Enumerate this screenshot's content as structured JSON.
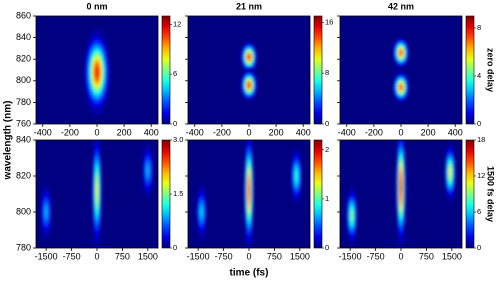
{
  "chart_data": [
    {
      "type": "heatmap",
      "title": "0 nm",
      "ylabel": "wavelength (nm)",
      "xlim": [
        -450,
        450
      ],
      "xticks": [
        -400,
        -200,
        0,
        200,
        400
      ],
      "ylim": [
        760,
        860
      ],
      "yticks": [
        760,
        780,
        800,
        820,
        840,
        860
      ],
      "clim": [
        0,
        13
      ],
      "cticks": [
        0,
        6,
        12
      ],
      "spots": [
        {
          "x": 0,
          "y": 808,
          "value": 12,
          "sx": 40,
          "sy": 16
        }
      ]
    },
    {
      "type": "heatmap",
      "title": "21 nm",
      "xlim": [
        -450,
        450
      ],
      "xticks": [
        -400,
        -200,
        0,
        200,
        400
      ],
      "ylim": [
        760,
        860
      ],
      "yticks": [
        760,
        780,
        800,
        820,
        840,
        860
      ],
      "clim": [
        0,
        17
      ],
      "cticks": [
        0,
        8,
        16
      ],
      "spots": [
        {
          "x": 0,
          "y": 822,
          "value": 16,
          "sx": 25,
          "sy": 6
        },
        {
          "x": 0,
          "y": 796,
          "value": 16,
          "sx": 25,
          "sy": 6
        }
      ]
    },
    {
      "type": "heatmap",
      "title": "42 nm",
      "row_label": "zero delay",
      "xlim": [
        -450,
        450
      ],
      "xticks": [
        -400,
        -200,
        0,
        200,
        400
      ],
      "ylim": [
        760,
        860
      ],
      "yticks": [
        760,
        780,
        800,
        820,
        840,
        860
      ],
      "clim": [
        0,
        9
      ],
      "cticks": [
        0,
        4,
        8
      ],
      "spots": [
        {
          "x": 0,
          "y": 826,
          "value": 8,
          "sx": 25,
          "sy": 6
        },
        {
          "x": 0,
          "y": 794,
          "value": 8,
          "sx": 25,
          "sy": 6
        }
      ]
    },
    {
      "type": "heatmap",
      "xlim": [
        -1800,
        1800
      ],
      "xticks": [
        -1500,
        -750,
        0,
        750,
        1500
      ],
      "ylim": [
        780,
        840
      ],
      "yticks": [
        780,
        800,
        820,
        840
      ],
      "clim": [
        0,
        3
      ],
      "cticks": [
        0,
        1.5,
        {
          "value": 3,
          "label": "3.0"
        }
      ],
      "spots": [
        {
          "x": -1500,
          "y": 800,
          "value": 1,
          "sx": 70,
          "sy": 7
        },
        {
          "x": 0,
          "y": 812,
          "value": 2,
          "sx": 60,
          "sy": 14
        },
        {
          "x": 1500,
          "y": 823,
          "value": 1,
          "sx": 70,
          "sy": 7
        }
      ]
    },
    {
      "type": "heatmap",
      "xlabel": "time (fs)",
      "xlim": [
        -1800,
        1800
      ],
      "xticks": [
        -1500,
        -750,
        0,
        750,
        1500
      ],
      "ylim": [
        780,
        840
      ],
      "yticks": [
        780,
        800,
        820,
        840
      ],
      "clim": [
        0,
        2.2
      ],
      "cticks": [
        0,
        1,
        2
      ],
      "spots": [
        {
          "x": -1400,
          "y": 800,
          "value": 0.8,
          "sx": 70,
          "sy": 7
        },
        {
          "x": 0,
          "y": 812,
          "value": 2,
          "sx": 60,
          "sy": 14
        },
        {
          "x": 1400,
          "y": 820,
          "value": 1,
          "sx": 70,
          "sy": 7
        }
      ]
    },
    {
      "type": "heatmap",
      "row_label": "1500 fs delay",
      "xlim": [
        -1800,
        1800
      ],
      "xticks": [
        -1500,
        -750,
        0,
        750,
        1500
      ],
      "ylim": [
        780,
        840
      ],
      "yticks": [
        780,
        800,
        820,
        840
      ],
      "clim": [
        0,
        18
      ],
      "cticks": [
        0,
        6,
        12,
        18
      ],
      "spots": [
        {
          "x": -1450,
          "y": 798,
          "value": 10,
          "sx": 70,
          "sy": 7
        },
        {
          "x": 0,
          "y": 814,
          "value": 18,
          "sx": 60,
          "sy": 14
        },
        {
          "x": 1450,
          "y": 822,
          "value": 12,
          "sx": 70,
          "sy": 7
        }
      ]
    }
  ]
}
